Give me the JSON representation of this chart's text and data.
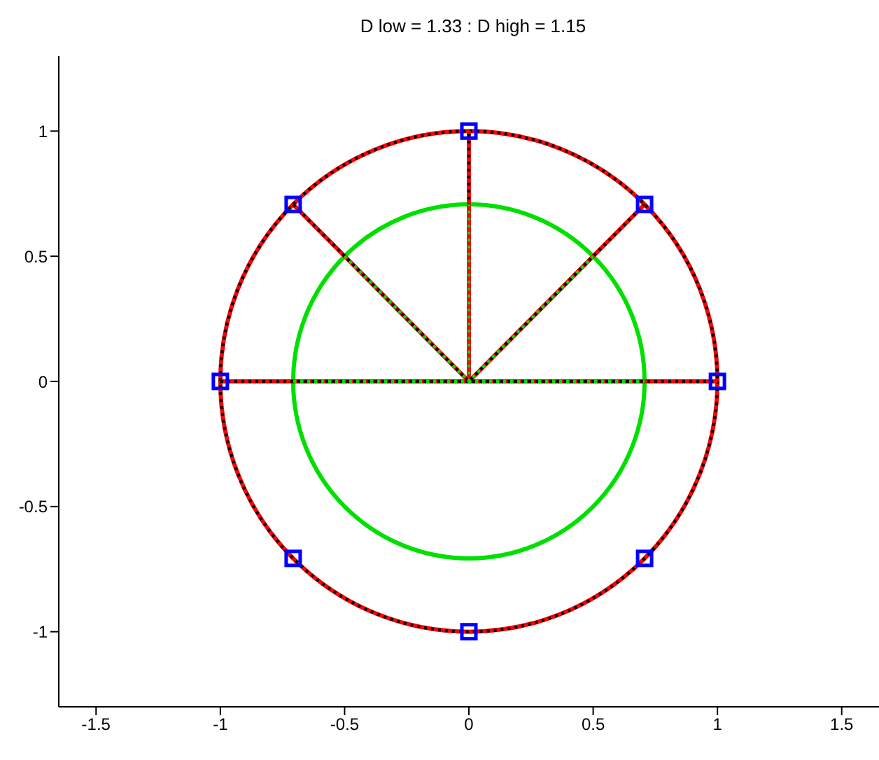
{
  "chart_data": {
    "type": "line",
    "title": "D low = 1.33 : D high = 1.15",
    "xlim": [
      -1.65,
      1.65
    ],
    "ylim": [
      -1.3,
      1.3
    ],
    "xticks": [
      -1.5,
      -1,
      -0.5,
      0,
      0.5,
      1,
      1.5
    ],
    "yticks": [
      -1,
      -0.5,
      0,
      0.5,
      1
    ],
    "grid": false,
    "legend": false,
    "series": [
      {
        "color": "#ff0000",
        "line_style": "solid",
        "marker": "none",
        "x": [
          -1,
          0,
          1
        ],
        "values": [
          0,
          0,
          0
        ]
      },
      {
        "color": "#ff0000",
        "line_style": "solid",
        "marker": "none",
        "x": [
          -0.707,
          0,
          0.707
        ],
        "values": [
          0.707,
          0,
          0.707
        ]
      },
      {
        "color": "#ff0000",
        "line_style": "solid",
        "marker": "none",
        "x": [
          0,
          0
        ],
        "values": [
          0,
          1
        ]
      },
      {
        "color": "#000000",
        "line_style": "dotted",
        "marker": "none",
        "x": [
          -1,
          0,
          1
        ],
        "values": [
          0,
          0,
          0
        ]
      },
      {
        "color": "#000000",
        "line_style": "dotted",
        "marker": "none",
        "x": [
          -0.707,
          0,
          0.707
        ],
        "values": [
          0.707,
          0,
          0.707
        ]
      },
      {
        "color": "#000000",
        "line_style": "dotted",
        "marker": "none",
        "x": [
          0,
          0
        ],
        "values": [
          0,
          1
        ]
      },
      {
        "color": "#00e000",
        "line_style": "dotted",
        "marker": "none",
        "x": [
          -0.707,
          0,
          0.707
        ],
        "values": [
          0,
          0,
          0
        ]
      },
      {
        "color": "#00e000",
        "line_style": "dotted",
        "marker": "none",
        "x": [
          -0.5,
          0,
          0.5
        ],
        "values": [
          0.5,
          0,
          0.5
        ]
      },
      {
        "color": "#00e000",
        "line_style": "dotted",
        "marker": "none",
        "x": [
          0,
          0
        ],
        "values": [
          0,
          0.707
        ]
      },
      {
        "type": "scatter",
        "color": "#0000ff",
        "marker": "square",
        "x": [
          1,
          0.707,
          0,
          -0.707,
          -1,
          -0.707,
          0,
          0.707
        ],
        "values": [
          0,
          0.707,
          1,
          0.707,
          0,
          -0.707,
          -1,
          -0.707
        ]
      }
    ]
  }
}
